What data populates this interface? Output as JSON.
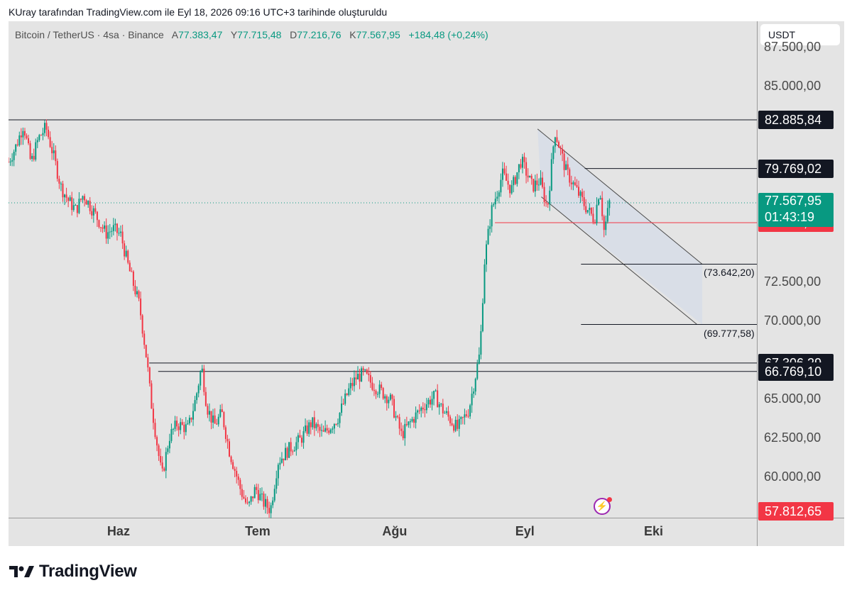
{
  "header": "KUray tarafından TradingView.com ile Eyl 18, 2026 09:16 UTC+3 tarihinde oluşturuldu",
  "legend": {
    "symbol": "Bitcoin / TetherUS · 4sa · Binance",
    "open_label": "A",
    "open": "77.383,47",
    "high_label": "Y",
    "high": "77.715,48",
    "low_label": "D",
    "low": "77.216,76",
    "close_label": "K",
    "close": "77.567,95",
    "change": "+184,48 (+0,24%)"
  },
  "currency_button": "USDT",
  "price_ticks": [
    {
      "label": "87.500,00",
      "value": 87500
    },
    {
      "label": "85.000,00",
      "value": 85000
    },
    {
      "label": "72.500,00",
      "value": 72500
    },
    {
      "label": "70.000,00",
      "value": 70000
    },
    {
      "label": "65.000,00",
      "value": 65000
    },
    {
      "label": "62.500,00",
      "value": 62500
    },
    {
      "label": "60.000,00",
      "value": 60000
    }
  ],
  "price_badges": [
    {
      "label": "82.885,84",
      "value": 82885.84,
      "color": "#131722"
    },
    {
      "label": "79.769,02",
      "value": 79769.02,
      "color": "#131722"
    },
    {
      "label": "76.300,66",
      "value": 76300.66,
      "color": "#f23645"
    },
    {
      "label": "67.306,29",
      "value": 67306.29,
      "color": "#131722"
    },
    {
      "label": "66.769,10",
      "value": 66769.1,
      "color": "#131722"
    },
    {
      "label": "57.812,65",
      "value": 57812.65,
      "color": "#f23645"
    }
  ],
  "last_price_badge": {
    "price": "77.567,95",
    "countdown": "01:43:19",
    "value": 77567.95,
    "color": "#089981"
  },
  "time_labels": [
    {
      "label": "Haz",
      "pos": 0.147
    },
    {
      "label": "Tem",
      "pos": 0.333
    },
    {
      "label": "Ağu",
      "pos": 0.516
    },
    {
      "label": "Eyl",
      "pos": 0.69
    },
    {
      "label": "Eki",
      "pos": 0.862
    }
  ],
  "channel_targets": [
    {
      "label": "(73.642,20)",
      "value": 73642.2
    },
    {
      "label": "(69.777,58)",
      "value": 69777.58
    }
  ],
  "logo": "TradingView",
  "chart_data": {
    "type": "candlestick",
    "ylim": [
      57400,
      89200
    ],
    "colors": {
      "up": "#089981",
      "down": "#f23645",
      "channel_fill": "#d7dde8"
    },
    "horizontal_levels": [
      82885.84,
      79769.02,
      76300.66,
      67306.29,
      66769.1
    ],
    "anchor_closes": [
      [
        0,
        80200
      ],
      [
        0.01,
        81200
      ],
      [
        0.02,
        82600
      ],
      [
        0.03,
        80100
      ],
      [
        0.04,
        81700
      ],
      [
        0.05,
        82400
      ],
      [
        0.06,
        80600
      ],
      [
        0.07,
        78600
      ],
      [
        0.08,
        77700
      ],
      [
        0.09,
        77100
      ],
      [
        0.1,
        78100
      ],
      [
        0.115,
        76900
      ],
      [
        0.13,
        75600
      ],
      [
        0.14,
        75900
      ],
      [
        0.15,
        75500
      ],
      [
        0.16,
        73500
      ],
      [
        0.175,
        71000
      ],
      [
        0.185,
        67400
      ],
      [
        0.19,
        65000
      ],
      [
        0.2,
        61600
      ],
      [
        0.205,
        60000
      ],
      [
        0.215,
        62600
      ],
      [
        0.225,
        63400
      ],
      [
        0.24,
        63100
      ],
      [
        0.25,
        65000
      ],
      [
        0.258,
        67100
      ],
      [
        0.265,
        64500
      ],
      [
        0.275,
        63300
      ],
      [
        0.285,
        64100
      ],
      [
        0.295,
        61700
      ],
      [
        0.31,
        59200
      ],
      [
        0.32,
        58000
      ],
      [
        0.33,
        59300
      ],
      [
        0.34,
        58400
      ],
      [
        0.35,
        57900
      ],
      [
        0.36,
        61000
      ],
      [
        0.375,
        61800
      ],
      [
        0.39,
        62400
      ],
      [
        0.405,
        63500
      ],
      [
        0.42,
        62700
      ],
      [
        0.44,
        63800
      ],
      [
        0.455,
        65600
      ],
      [
        0.465,
        66400
      ],
      [
        0.475,
        66600
      ],
      [
        0.485,
        66000
      ],
      [
        0.495,
        65600
      ],
      [
        0.51,
        65000
      ],
      [
        0.525,
        62700
      ],
      [
        0.54,
        63700
      ],
      [
        0.555,
        64600
      ],
      [
        0.57,
        65200
      ],
      [
        0.58,
        64300
      ],
      [
        0.6,
        63100
      ],
      [
        0.615,
        64300
      ],
      [
        0.63,
        68000
      ],
      [
        0.636,
        73800
      ],
      [
        0.645,
        77000
      ],
      [
        0.66,
        79400
      ],
      [
        0.672,
        78400
      ],
      [
        0.685,
        80300
      ],
      [
        0.7,
        78600
      ],
      [
        0.71,
        79000
      ],
      [
        0.72,
        77200
      ],
      [
        0.73,
        82200
      ],
      [
        0.745,
        79600
      ],
      [
        0.76,
        78300
      ],
      [
        0.77,
        77400
      ],
      [
        0.783,
        76500
      ],
      [
        0.79,
        78600
      ],
      [
        0.796,
        75700
      ],
      [
        0.803,
        77600
      ]
    ],
    "channel": {
      "upper": [
        [
          0.707,
          82300
        ],
        [
          0.927,
          73642.2
        ]
      ],
      "lower": [
        [
          0.712,
          77950
        ],
        [
          0.92,
          69777.58
        ]
      ],
      "target_lines": [
        {
          "from": 0.765,
          "to": 1.0,
          "value": 73642.2
        },
        {
          "from": 0.765,
          "to": 1.0,
          "value": 69777.58
        }
      ]
    }
  }
}
